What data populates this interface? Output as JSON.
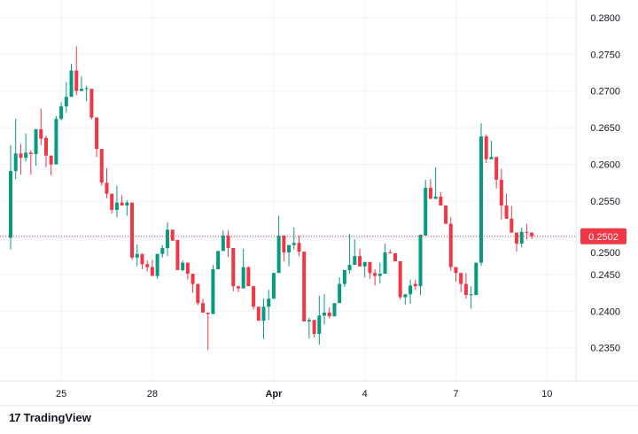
{
  "chart_data": {
    "type": "candlestick",
    "title": "",
    "xlabel": "",
    "ylabel": "",
    "ylim": [
      0.2305,
      0.2824
    ],
    "y_ticks": [
      "0.2800",
      "0.2750",
      "0.2700",
      "0.2650",
      "0.2600",
      "0.2550",
      "0.2500",
      "0.2450",
      "0.2400",
      "0.2350"
    ],
    "x_ticks": [
      {
        "label": "25",
        "bar_index": 10
      },
      {
        "label": "28",
        "bar_index": 28
      },
      {
        "label": "Apr",
        "bar_index": 52
      },
      {
        "label": "4",
        "bar_index": 70
      },
      {
        "label": "7",
        "bar_index": 88
      },
      {
        "label": "10",
        "bar_index": 106
      }
    ],
    "grid": true,
    "last_price": "0.2502",
    "colors": {
      "up": "#089981",
      "down": "#f23645",
      "grid": "#f0f3fa",
      "text": "#131722"
    },
    "ohlc_fields": [
      "open",
      "high",
      "low",
      "close"
    ],
    "candles": [
      [
        0.25,
        0.2626,
        0.2484,
        0.2591
      ],
      [
        0.2591,
        0.2662,
        0.258,
        0.2615
      ],
      [
        0.2615,
        0.2628,
        0.2586,
        0.2609
      ],
      [
        0.2609,
        0.2642,
        0.2604,
        0.2616
      ],
      [
        0.2616,
        0.2619,
        0.2586,
        0.2614
      ],
      [
        0.2614,
        0.2648,
        0.2598,
        0.2648
      ],
      [
        0.2648,
        0.2676,
        0.2626,
        0.2635
      ],
      [
        0.2636,
        0.2639,
        0.2596,
        0.2612
      ],
      [
        0.2612,
        0.2612,
        0.2585,
        0.26
      ],
      [
        0.26,
        0.2666,
        0.26,
        0.2662
      ],
      [
        0.2662,
        0.2685,
        0.266,
        0.2679
      ],
      [
        0.2679,
        0.2712,
        0.2671,
        0.2692
      ],
      [
        0.2692,
        0.2737,
        0.2692,
        0.2728
      ],
      [
        0.2728,
        0.2761,
        0.2694,
        0.27
      ],
      [
        0.27,
        0.272,
        0.27,
        0.2703
      ],
      [
        0.2703,
        0.2707,
        0.2686,
        0.2704
      ],
      [
        0.2703,
        0.2703,
        0.2661,
        0.2664
      ],
      [
        0.2664,
        0.2664,
        0.261,
        0.2621
      ],
      [
        0.2621,
        0.2621,
        0.2571,
        0.2575
      ],
      [
        0.2575,
        0.2595,
        0.2554,
        0.256
      ],
      [
        0.256,
        0.256,
        0.2533,
        0.2538
      ],
      [
        0.2538,
        0.2571,
        0.2528,
        0.2548
      ],
      [
        0.2548,
        0.2558,
        0.2544,
        0.2544
      ],
      [
        0.2544,
        0.2551,
        0.253,
        0.2548
      ],
      [
        0.2548,
        0.2548,
        0.247,
        0.2473
      ],
      [
        0.2473,
        0.2491,
        0.2461,
        0.2478
      ],
      [
        0.2478,
        0.2478,
        0.2457,
        0.2464
      ],
      [
        0.2464,
        0.2469,
        0.2454,
        0.246
      ],
      [
        0.246,
        0.247,
        0.2448,
        0.2448
      ],
      [
        0.2448,
        0.2478,
        0.2444,
        0.2478
      ],
      [
        0.2478,
        0.249,
        0.2473,
        0.2486
      ],
      [
        0.2486,
        0.2521,
        0.2475,
        0.2511
      ],
      [
        0.2511,
        0.2511,
        0.2496,
        0.2496
      ],
      [
        0.2497,
        0.2497,
        0.2456,
        0.2456
      ],
      [
        0.2456,
        0.2469,
        0.2454,
        0.2466
      ],
      [
        0.2466,
        0.2466,
        0.2443,
        0.2451
      ],
      [
        0.2451,
        0.2451,
        0.2425,
        0.2437
      ],
      [
        0.2437,
        0.2437,
        0.2408,
        0.2411
      ],
      [
        0.2411,
        0.2417,
        0.2398,
        0.2398
      ],
      [
        0.2398,
        0.2398,
        0.2347,
        0.2396
      ],
      [
        0.2396,
        0.2463,
        0.2396,
        0.2457
      ],
      [
        0.2457,
        0.2482,
        0.2457,
        0.2482
      ],
      [
        0.2482,
        0.251,
        0.2482,
        0.2503
      ],
      [
        0.2503,
        0.251,
        0.2474,
        0.2486
      ],
      [
        0.2486,
        0.2486,
        0.2427,
        0.2434
      ],
      [
        0.2434,
        0.2434,
        0.2426,
        0.2431
      ],
      [
        0.2431,
        0.2485,
        0.2431,
        0.246
      ],
      [
        0.246,
        0.2461,
        0.2434,
        0.2434
      ],
      [
        0.2434,
        0.2434,
        0.2402,
        0.2406
      ],
      [
        0.2406,
        0.2406,
        0.2387,
        0.2387
      ],
      [
        0.2387,
        0.2417,
        0.2362,
        0.2406
      ],
      [
        0.2406,
        0.2429,
        0.2388,
        0.2417
      ],
      [
        0.2417,
        0.2452,
        0.2417,
        0.2452
      ],
      [
        0.2452,
        0.253,
        0.2452,
        0.2503
      ],
      [
        0.2503,
        0.2503,
        0.2468,
        0.248
      ],
      [
        0.248,
        0.249,
        0.2461,
        0.249
      ],
      [
        0.249,
        0.2514,
        0.2484,
        0.2493
      ],
      [
        0.2493,
        0.2503,
        0.2475,
        0.2481
      ],
      [
        0.2481,
        0.2481,
        0.2386,
        0.2386
      ],
      [
        0.2386,
        0.2391,
        0.2363,
        0.2388
      ],
      [
        0.2388,
        0.2388,
        0.2364,
        0.2369
      ],
      [
        0.2369,
        0.2421,
        0.2354,
        0.2394
      ],
      [
        0.2394,
        0.2423,
        0.2382,
        0.2398
      ],
      [
        0.2398,
        0.2405,
        0.239,
        0.2393
      ],
      [
        0.2393,
        0.2411,
        0.2393,
        0.2411
      ],
      [
        0.2411,
        0.2446,
        0.2411,
        0.2437
      ],
      [
        0.2437,
        0.2456,
        0.2433,
        0.2456
      ],
      [
        0.2456,
        0.2505,
        0.2451,
        0.2463
      ],
      [
        0.2463,
        0.2498,
        0.2463,
        0.2475
      ],
      [
        0.2475,
        0.2485,
        0.2461,
        0.2461
      ],
      [
        0.2461,
        0.2467,
        0.2446,
        0.2467
      ],
      [
        0.2467,
        0.2467,
        0.2444,
        0.2452
      ],
      [
        0.2452,
        0.2457,
        0.2435,
        0.2448
      ],
      [
        0.2448,
        0.2466,
        0.2438,
        0.2451
      ],
      [
        0.2451,
        0.2492,
        0.2451,
        0.248
      ],
      [
        0.248,
        0.2484,
        0.2479,
        0.2479
      ],
      [
        0.2479,
        0.2479,
        0.2468,
        0.2468
      ],
      [
        0.2468,
        0.2468,
        0.2416,
        0.2419
      ],
      [
        0.2419,
        0.2423,
        0.2409,
        0.2423
      ],
      [
        0.2423,
        0.2443,
        0.241,
        0.2435
      ],
      [
        0.2437,
        0.2443,
        0.2429,
        0.2434
      ],
      [
        0.2434,
        0.2504,
        0.2422,
        0.2504
      ],
      [
        0.2503,
        0.2579,
        0.2503,
        0.2568
      ],
      [
        0.2568,
        0.258,
        0.2553,
        0.2553
      ],
      [
        0.2553,
        0.2596,
        0.2553,
        0.2556
      ],
      [
        0.2556,
        0.2562,
        0.2544,
        0.2544
      ],
      [
        0.2544,
        0.2544,
        0.2519,
        0.2519
      ],
      [
        0.2519,
        0.2528,
        0.2455,
        0.246
      ],
      [
        0.246,
        0.246,
        0.244,
        0.2452
      ],
      [
        0.2452,
        0.2452,
        0.2426,
        0.2437
      ],
      [
        0.2437,
        0.2452,
        0.2417,
        0.2422
      ],
      [
        0.2422,
        0.2434,
        0.2403,
        0.2423
      ],
      [
        0.2422,
        0.2466,
        0.2422,
        0.2466
      ],
      [
        0.2466,
        0.2656,
        0.2462,
        0.2638
      ],
      [
        0.2638,
        0.2641,
        0.2602,
        0.2607
      ],
      [
        0.2607,
        0.2632,
        0.2607,
        0.261
      ],
      [
        0.261,
        0.261,
        0.2567,
        0.2579
      ],
      [
        0.2579,
        0.2594,
        0.2525,
        0.2544
      ],
      [
        0.2544,
        0.256,
        0.2526,
        0.2526
      ],
      [
        0.2526,
        0.2543,
        0.2507,
        0.2507
      ],
      [
        0.2507,
        0.2507,
        0.2481,
        0.2492
      ],
      [
        0.2492,
        0.2514,
        0.2487,
        0.2508
      ],
      [
        0.2508,
        0.2519,
        0.2498,
        0.2507
      ],
      [
        0.2507,
        0.2507,
        0.2498,
        0.2502
      ]
    ]
  },
  "branding": {
    "logo_text": "TradingView",
    "logo_mark": "17"
  }
}
